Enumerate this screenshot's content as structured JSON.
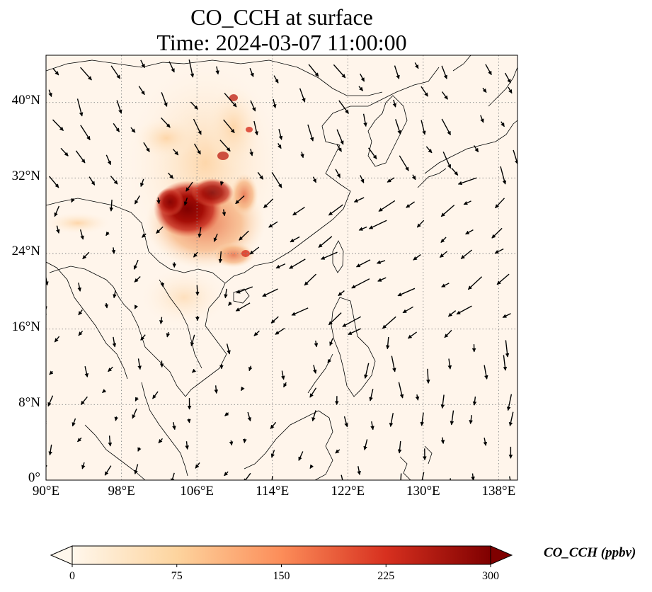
{
  "title": {
    "line1": "CO_CCH at surface",
    "line2": "Time: 2024-03-07 11:00:00"
  },
  "map": {
    "lon_range": [
      90,
      140
    ],
    "lat_range": [
      0,
      45
    ],
    "lat_ticks": [
      {
        "value": 0,
        "label": "0°"
      },
      {
        "value": 8,
        "label": "8°N"
      },
      {
        "value": 16,
        "label": "16°N"
      },
      {
        "value": 24,
        "label": "24°N"
      },
      {
        "value": 32,
        "label": "32°N"
      },
      {
        "value": 40,
        "label": "40°N"
      }
    ],
    "lon_ticks": [
      {
        "value": 90,
        "label": "90°E"
      },
      {
        "value": 98,
        "label": "98°E"
      },
      {
        "value": 106,
        "label": "106°E"
      },
      {
        "value": 114,
        "label": "114°E"
      },
      {
        "value": 122,
        "label": "122°E"
      },
      {
        "value": 130,
        "label": "130°E"
      },
      {
        "value": 138,
        "label": "138°E"
      }
    ],
    "grid": "dotted",
    "background_color": "#fff5eb",
    "wind_vectors": true
  },
  "colorbar": {
    "label": "CO_CCH (ppbv)",
    "colormap": "OrRd",
    "range": [
      0,
      300
    ],
    "ticks": [
      "0",
      "75",
      "150",
      "225",
      "300"
    ],
    "extend": "both"
  }
}
